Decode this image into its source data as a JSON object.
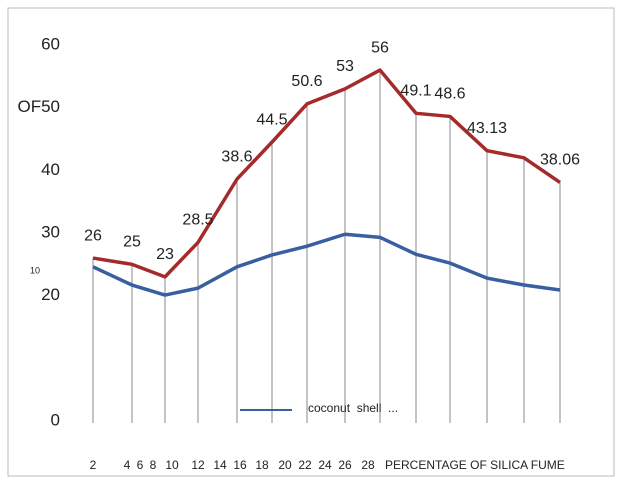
{
  "chart_data": {
    "type": "line",
    "categories": [
      "2",
      "4",
      "6",
      "8",
      "10",
      "12",
      "14",
      "16",
      "18",
      "20",
      "22",
      "24",
      "26",
      "28"
    ],
    "series": [
      {
        "color": "#a52a2a",
        "values": [
          26,
          25,
          23,
          28.5,
          38.6,
          44.5,
          50.6,
          53,
          56,
          49.1,
          48.6,
          43.13,
          42,
          38.06
        ],
        "value_labels": [
          "26",
          "25",
          "23",
          "28.5",
          "38.6",
          "44.5",
          "50.6",
          "53",
          "56",
          "49.1",
          "48.6",
          "43.13",
          null,
          "38.06"
        ]
      },
      {
        "name": "coconut  shell  ...",
        "color": "#3a5fa0",
        "values": [
          24.6,
          21.7,
          20.1,
          21.2,
          24.6,
          26.5,
          27.9,
          29.8,
          29.3,
          26.6,
          25.2,
          22.8,
          21.7,
          20.9
        ]
      }
    ],
    "ylim": [
      0,
      60
    ],
    "yticks": [
      0,
      20,
      30,
      40,
      {
        "value": 50,
        "label": "OF50"
      },
      60
    ],
    "annotation": "10",
    "x_label": "PERCENTAGE OF SILICA FUME",
    "grid": false
  }
}
